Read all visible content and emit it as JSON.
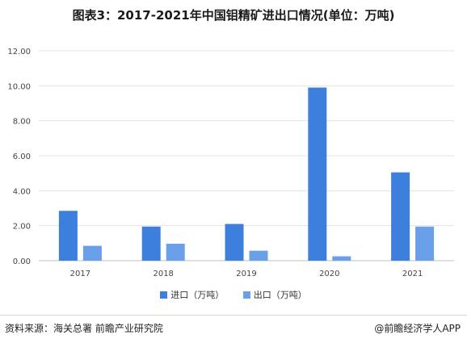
{
  "title": "图表3：2017-2021年中国钼精矿进出口情况(单位：万吨)",
  "footer": {
    "source": "资料来源：海关总署 前瞻产业研究院",
    "brand": "@前瞻经济学人APP"
  },
  "colors": {
    "import": "#3d7fdc",
    "export": "#6aa0ea",
    "grid": "#e3e3e3",
    "axis": "#bfbfbf"
  },
  "chart_data": {
    "type": "bar",
    "categories": [
      "2017",
      "2018",
      "2019",
      "2020",
      "2021"
    ],
    "series": [
      {
        "name": "进口（万吨）",
        "values": [
          2.85,
          1.95,
          2.1,
          9.9,
          5.05
        ]
      },
      {
        "name": "出口（万吨）",
        "values": [
          0.85,
          0.97,
          0.57,
          0.25,
          1.95
        ]
      }
    ],
    "ylim": [
      0,
      12
    ],
    "yticks": [
      "0.00",
      "2.00",
      "4.00",
      "6.00",
      "8.00",
      "10.00",
      "12.00"
    ],
    "grid": true,
    "legend_position": "bottom"
  }
}
